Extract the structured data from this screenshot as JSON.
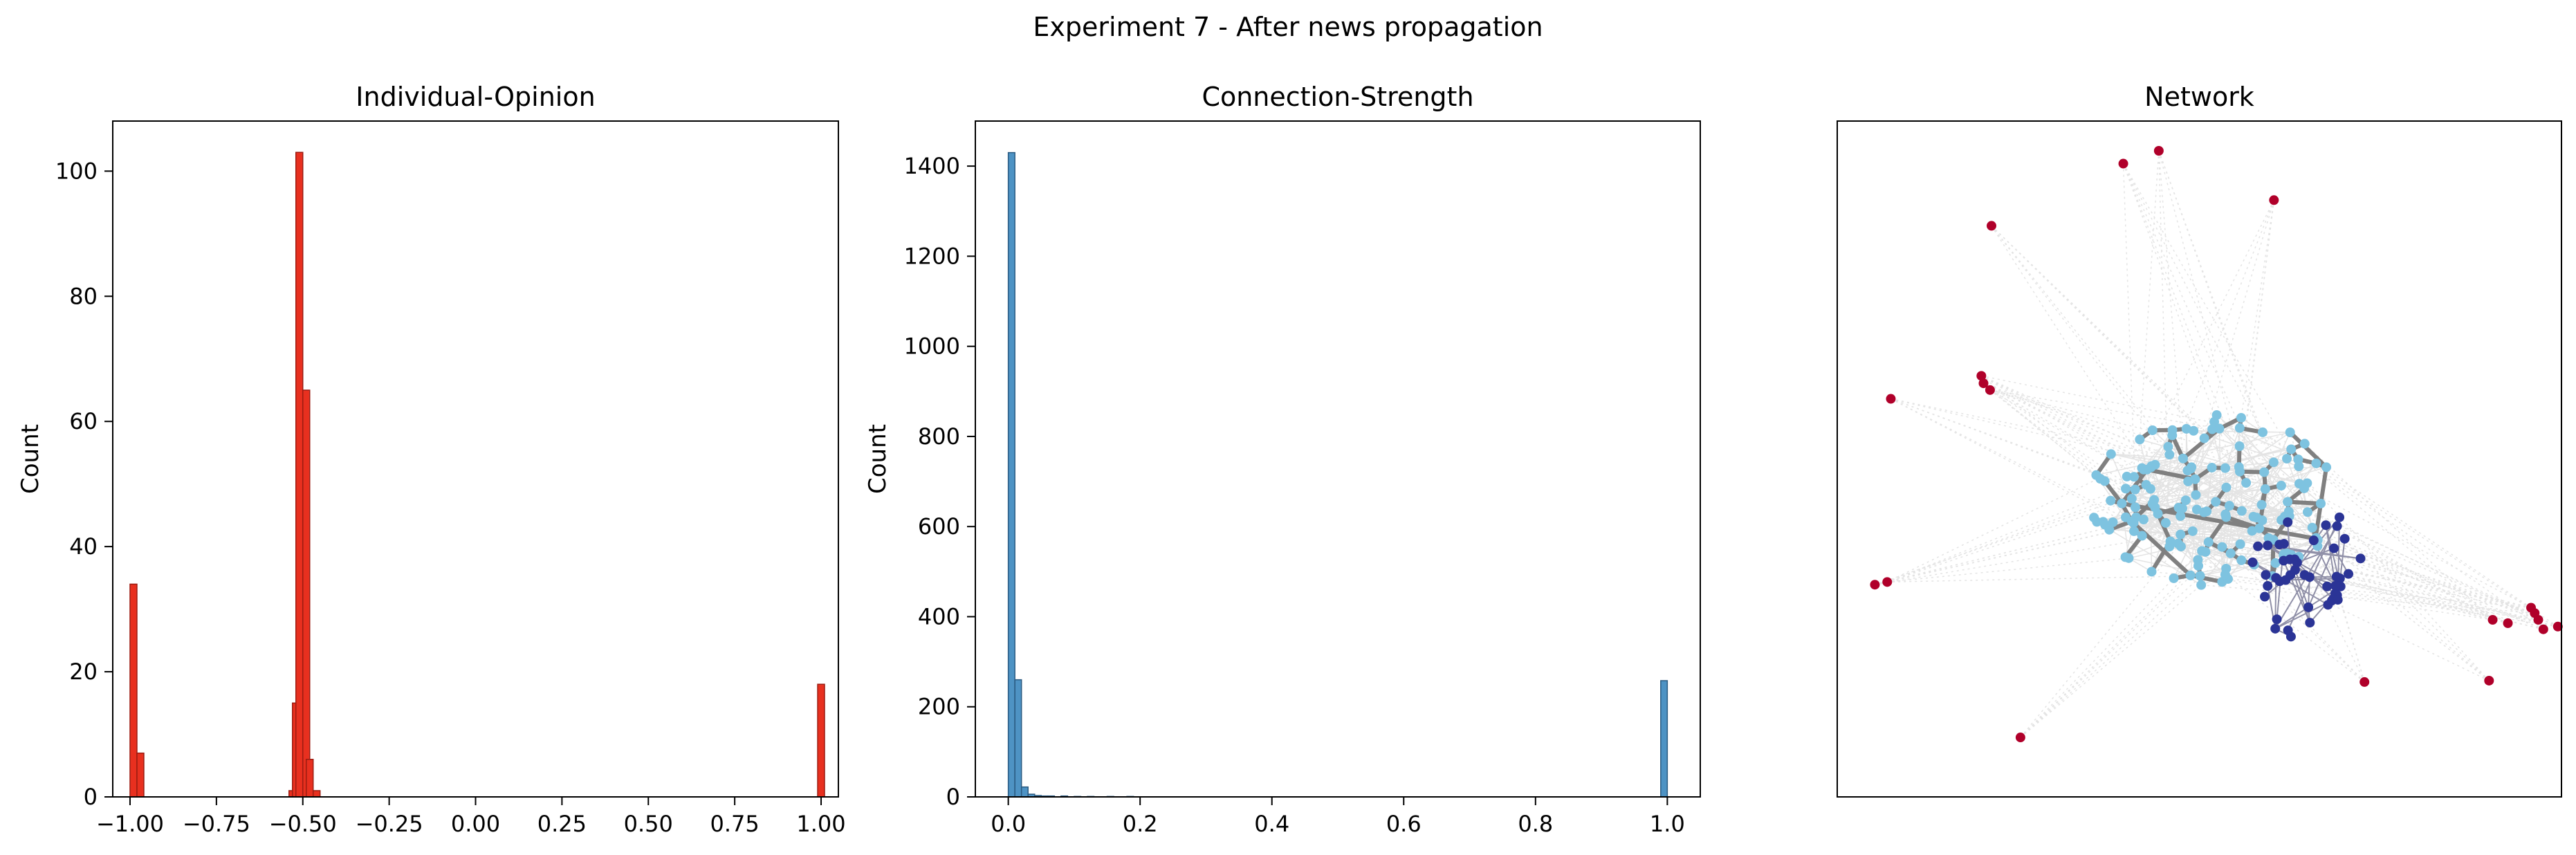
{
  "figure": {
    "title": "Experiment 7 - After news propagation"
  },
  "chart_data": [
    {
      "type": "bar",
      "title": "Individual-Opinion",
      "xlabel": "",
      "ylabel": "Count",
      "color": "#e8301f",
      "edge_color": "#9b1c12",
      "xlim": [
        -1.05,
        1.05
      ],
      "ylim": [
        0,
        108
      ],
      "bin_width": 0.02,
      "x_ticks": [
        -1.0,
        -0.75,
        -0.5,
        -0.25,
        0.0,
        0.25,
        0.5,
        0.75,
        1.0
      ],
      "x_tick_labels": [
        "−1.00",
        "−0.75",
        "−0.50",
        "−0.25",
        "0.00",
        "0.25",
        "0.50",
        "0.75",
        "1.00"
      ],
      "y_ticks": [
        0,
        20,
        40,
        60,
        80,
        100
      ],
      "y_tick_labels": [
        "0",
        "20",
        "40",
        "60",
        "80",
        "100"
      ],
      "bins": [
        {
          "x": -1.0,
          "count": 34
        },
        {
          "x": -0.98,
          "count": 7
        },
        {
          "x": -0.54,
          "count": 1
        },
        {
          "x": -0.53,
          "count": 15
        },
        {
          "x": -0.52,
          "count": 103
        },
        {
          "x": -0.5,
          "count": 65
        },
        {
          "x": -0.49,
          "count": 6
        },
        {
          "x": -0.47,
          "count": 1
        },
        {
          "x": 0.99,
          "count": 18
        }
      ]
    },
    {
      "type": "bar",
      "title": "Connection-Strength",
      "xlabel": "",
      "ylabel": "Count",
      "color": "#4e93c4",
      "edge_color": "#2a5a80",
      "xlim": [
        -0.05,
        1.05
      ],
      "ylim": [
        0,
        1500
      ],
      "bin_width": 0.01,
      "x_ticks": [
        0.0,
        0.2,
        0.4,
        0.6,
        0.8,
        1.0
      ],
      "x_tick_labels": [
        "0.0",
        "0.2",
        "0.4",
        "0.6",
        "0.8",
        "1.0"
      ],
      "y_ticks": [
        0,
        200,
        400,
        600,
        800,
        1000,
        1200,
        1400
      ],
      "y_tick_labels": [
        "0",
        "200",
        "400",
        "600",
        "800",
        "1000",
        "1200",
        "1400"
      ],
      "bins": [
        {
          "x": 0.0,
          "count": 1430
        },
        {
          "x": 0.01,
          "count": 260
        },
        {
          "x": 0.02,
          "count": 22
        },
        {
          "x": 0.03,
          "count": 6
        },
        {
          "x": 0.04,
          "count": 3
        },
        {
          "x": 0.05,
          "count": 2
        },
        {
          "x": 0.06,
          "count": 2
        },
        {
          "x": 0.08,
          "count": 2
        },
        {
          "x": 0.1,
          "count": 1
        },
        {
          "x": 0.12,
          "count": 1
        },
        {
          "x": 0.15,
          "count": 1
        },
        {
          "x": 0.18,
          "count": 1
        },
        {
          "x": 0.99,
          "count": 258
        }
      ]
    },
    {
      "type": "network",
      "title": "Network",
      "xlabel": "",
      "ylabel": "",
      "xlim": [
        0,
        1
      ],
      "ylim": [
        0,
        1
      ],
      "colors": {
        "light": "#7ec3e0",
        "dark": "#2b3496",
        "red": "#b0002a",
        "edge": "#808080",
        "faint_edge": "#e4e4e4"
      }
    }
  ]
}
